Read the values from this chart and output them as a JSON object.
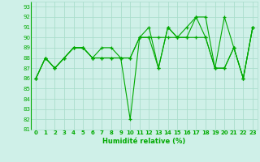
{
  "title": "",
  "xlabel": "Humidité relative (%)",
  "ylabel": "",
  "background_color": "#cff0e8",
  "grid_color": "#aaddcc",
  "line_color": "#00aa00",
  "marker_color": "#00aa00",
  "xlim": [
    -0.5,
    23.5
  ],
  "ylim": [
    81,
    93.5
  ],
  "yticks": [
    81,
    82,
    83,
    84,
    85,
    86,
    87,
    88,
    89,
    90,
    91,
    92,
    93
  ],
  "xticks": [
    0,
    1,
    2,
    3,
    4,
    5,
    6,
    7,
    8,
    9,
    10,
    11,
    12,
    13,
    14,
    15,
    16,
    17,
    18,
    19,
    20,
    21,
    22,
    23
  ],
  "series": [
    [
      86,
      88,
      87,
      88,
      89,
      89,
      88,
      89,
      89,
      88,
      88,
      90,
      91,
      87,
      91,
      90,
      90,
      92,
      90,
      87,
      92,
      89,
      86,
      91
    ],
    [
      86,
      88,
      87,
      88,
      89,
      89,
      88,
      88,
      88,
      88,
      88,
      90,
      90,
      90,
      90,
      90,
      90,
      90,
      90,
      87,
      87,
      89,
      86,
      91
    ],
    [
      86,
      88,
      87,
      88,
      89,
      89,
      88,
      88,
      88,
      88,
      82,
      90,
      90,
      87,
      91,
      90,
      91,
      92,
      92,
      87,
      87,
      89,
      86,
      91
    ]
  ],
  "xlabel_fontsize": 6.0,
  "tick_fontsize": 5.0
}
